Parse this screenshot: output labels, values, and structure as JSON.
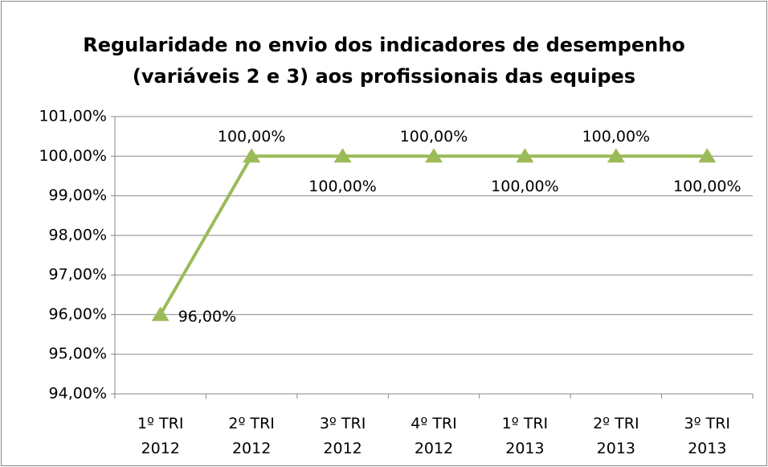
{
  "chart_data": {
    "type": "line",
    "title": [
      "Regularidade no envio dos indicadores de desempenho",
      "(variáveis 2 e 3) aos profissionais das equipes"
    ],
    "categories": [
      "1º TRI\n2012",
      "2º TRI\n2012",
      "3º TRI\n2012",
      "4º TRI\n2012",
      "1º TRI\n2013",
      "2º TRI\n2013",
      "3º TRI\n2013"
    ],
    "values": [
      96,
      100,
      100,
      100,
      100,
      100,
      100
    ],
    "value_labels": [
      "96,00%",
      "100,00%",
      "100,00%",
      "100,00%",
      "100,00%",
      "100,00%",
      "100,00%"
    ],
    "color": "#9bbb59",
    "ylim": [
      94,
      101
    ],
    "yticks": [
      {
        "value": 94,
        "label": "94,00%"
      },
      {
        "value": 95,
        "label": "95,00%"
      },
      {
        "value": 96,
        "label": "96,00%"
      },
      {
        "value": 97,
        "label": "97,00%"
      },
      {
        "value": 98,
        "label": "98,00%"
      },
      {
        "value": 99,
        "label": "99,00%"
      },
      {
        "value": 100,
        "label": "100,00%"
      },
      {
        "value": 101,
        "label": "101,00%"
      }
    ],
    "grid": true
  }
}
